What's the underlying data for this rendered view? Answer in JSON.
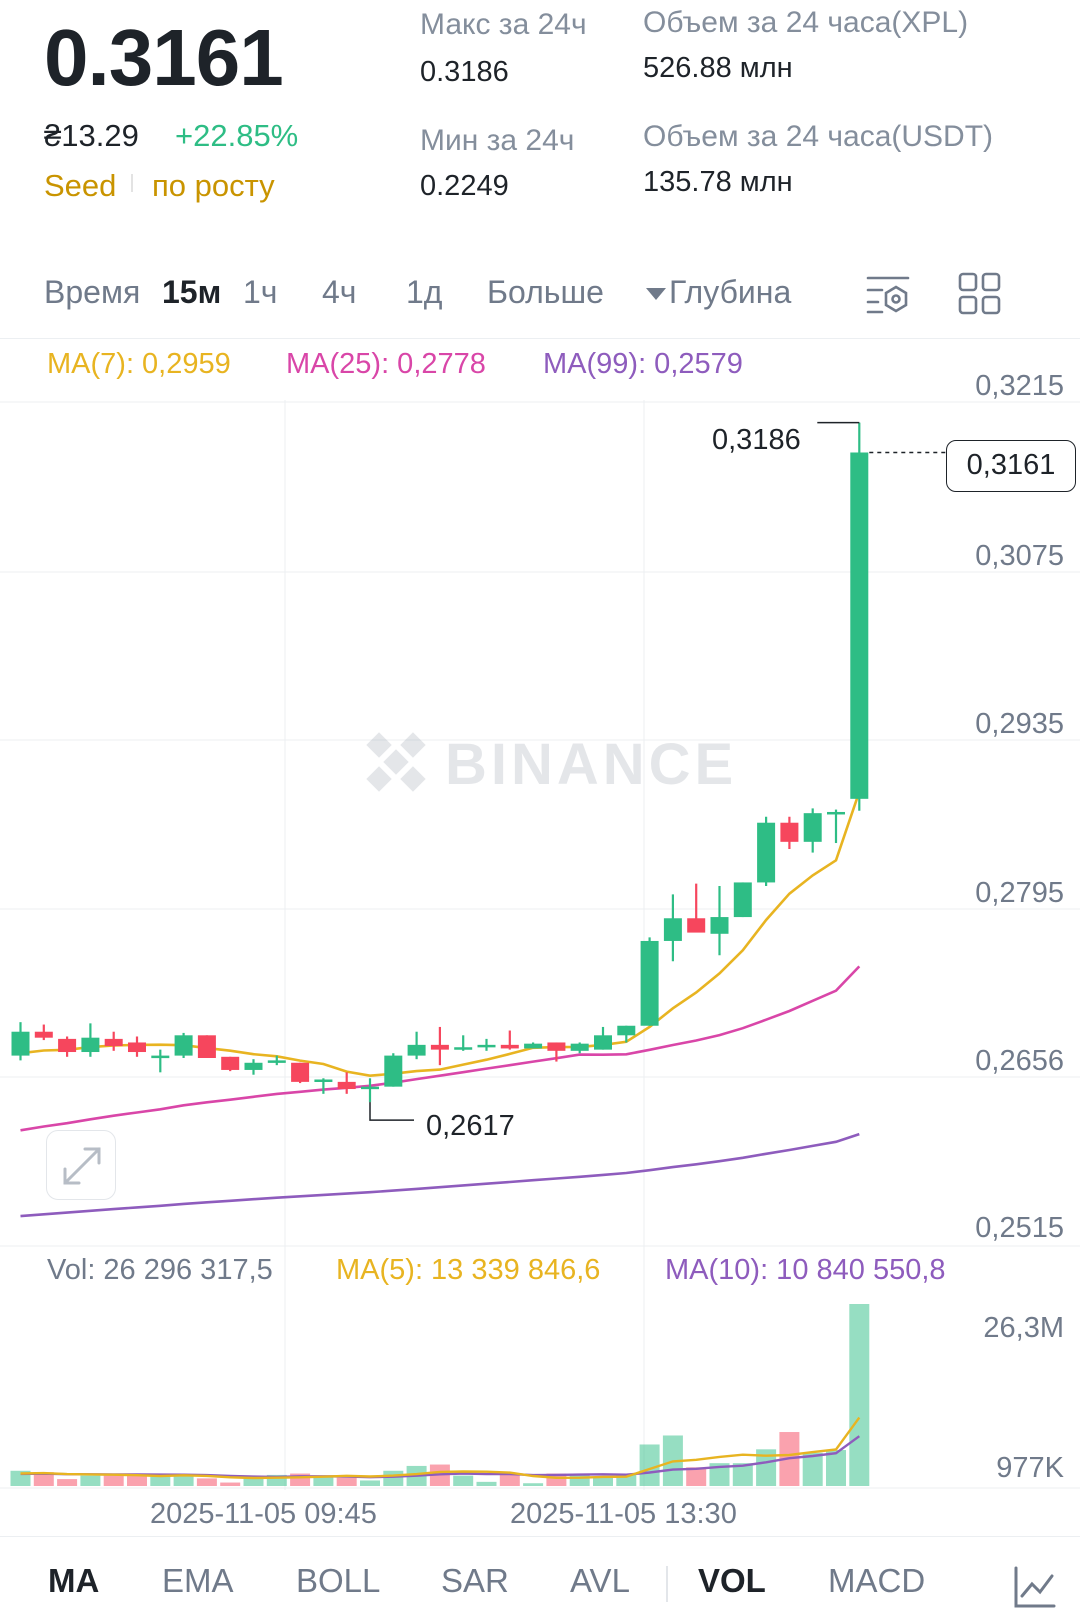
{
  "header": {
    "last_price": "0.3161",
    "fiat_price": "₴13.29",
    "change_pct": "+22.85%",
    "tag_seed": "Seed",
    "tag_trend": "по росту",
    "high_label": "Макс за 24ч",
    "high_value": "0.3186",
    "low_label": "Мин за 24ч",
    "low_value": "0.2249",
    "vol_base_label": "Объем за 24 часа(XPL)",
    "vol_base_value": "526.88 млн",
    "vol_quote_label": "Объем за 24 часа(USDT)",
    "vol_quote_value": "135.78 млн"
  },
  "timeframes": {
    "time_label": "Время",
    "tabs": [
      "15м",
      "1ч",
      "4ч",
      "1д"
    ],
    "active": "15м",
    "more_label": "Больше",
    "depth_label": "Глубина"
  },
  "ma_legend": {
    "ma7": "MA(7): 0,2959",
    "ma25": "MA(25): 0,2778",
    "ma99": "MA(99): 0,2579"
  },
  "price_axis": [
    "0,3215",
    "0,3075",
    "0,2935",
    "0,2795",
    "0,2656",
    "0,2515"
  ],
  "current_price_tag": "0,3161",
  "high_marker": "0,3186",
  "low_marker": "0,2617",
  "watermark": "BINANCE",
  "volume_legend": {
    "vol": "Vol: 26 296 317,5",
    "ma5": "MA(5): 13 339 846,6",
    "ma10": "MA(10): 10 840 550,8"
  },
  "volume_axis": [
    "26,3M",
    "977K"
  ],
  "dates": [
    "2025-11-05 09:45",
    "2025-11-05 13:30"
  ],
  "indicators": {
    "items": [
      "MA",
      "EMA",
      "BOLL",
      "SAR",
      "AVL",
      "VOL",
      "MACD"
    ],
    "active_main": "MA",
    "active_sub": "VOL"
  },
  "colors": {
    "up": "#2ebd85",
    "down": "#f6465d",
    "ma7": "#e8b421",
    "ma25": "#d946a8",
    "ma99": "#8e5cbd",
    "accent_gold": "#c99400"
  },
  "chart_data": {
    "type": "candlestick",
    "interval": "15m",
    "price_range": [
      0.2515,
      0.3215
    ],
    "candles": [
      {
        "o": 0.2656,
        "h": 0.2684,
        "l": 0.2652,
        "c": 0.2676
      },
      {
        "o": 0.2676,
        "h": 0.2682,
        "l": 0.2669,
        "c": 0.2671
      },
      {
        "o": 0.267,
        "h": 0.2672,
        "l": 0.2655,
        "c": 0.2659
      },
      {
        "o": 0.2659,
        "h": 0.2683,
        "l": 0.2655,
        "c": 0.2671
      },
      {
        "o": 0.267,
        "h": 0.2676,
        "l": 0.266,
        "c": 0.2664
      },
      {
        "o": 0.2667,
        "h": 0.2672,
        "l": 0.2655,
        "c": 0.2659
      },
      {
        "o": 0.2656,
        "h": 0.2661,
        "l": 0.2642,
        "c": 0.2656
      },
      {
        "o": 0.2656,
        "h": 0.2675,
        "l": 0.2654,
        "c": 0.2673
      },
      {
        "o": 0.2673,
        "h": 0.2673,
        "l": 0.2654,
        "c": 0.2654
      },
      {
        "o": 0.2655,
        "h": 0.2655,
        "l": 0.2643,
        "c": 0.2644
      },
      {
        "o": 0.2644,
        "h": 0.2653,
        "l": 0.264,
        "c": 0.265
      },
      {
        "o": 0.265,
        "h": 0.2656,
        "l": 0.2648,
        "c": 0.2652
      },
      {
        "o": 0.265,
        "h": 0.265,
        "l": 0.2633,
        "c": 0.2634
      },
      {
        "o": 0.2634,
        "h": 0.2637,
        "l": 0.2624,
        "c": 0.2636
      },
      {
        "o": 0.2634,
        "h": 0.2642,
        "l": 0.2624,
        "c": 0.2628
      },
      {
        "o": 0.2628,
        "h": 0.2637,
        "l": 0.2617,
        "c": 0.263
      },
      {
        "o": 0.263,
        "h": 0.2658,
        "l": 0.263,
        "c": 0.2656
      },
      {
        "o": 0.2656,
        "h": 0.2676,
        "l": 0.2653,
        "c": 0.2665
      },
      {
        "o": 0.2665,
        "h": 0.268,
        "l": 0.2648,
        "c": 0.2661
      },
      {
        "o": 0.2661,
        "h": 0.2673,
        "l": 0.266,
        "c": 0.2663
      },
      {
        "o": 0.2663,
        "h": 0.267,
        "l": 0.266,
        "c": 0.2665
      },
      {
        "o": 0.2665,
        "h": 0.2677,
        "l": 0.2661,
        "c": 0.2662
      },
      {
        "o": 0.2662,
        "h": 0.2667,
        "l": 0.2662,
        "c": 0.2666
      },
      {
        "o": 0.2667,
        "h": 0.2667,
        "l": 0.2651,
        "c": 0.266
      },
      {
        "o": 0.266,
        "h": 0.2667,
        "l": 0.2658,
        "c": 0.2666
      },
      {
        "o": 0.2661,
        "h": 0.268,
        "l": 0.2661,
        "c": 0.2673
      },
      {
        "o": 0.2673,
        "h": 0.2681,
        "l": 0.2667,
        "c": 0.2681
      },
      {
        "o": 0.2681,
        "h": 0.2755,
        "l": 0.2681,
        "c": 0.2752
      },
      {
        "o": 0.2752,
        "h": 0.2791,
        "l": 0.2735,
        "c": 0.2771
      },
      {
        "o": 0.2771,
        "h": 0.28,
        "l": 0.276,
        "c": 0.2759
      },
      {
        "o": 0.2758,
        "h": 0.2798,
        "l": 0.274,
        "c": 0.2772
      },
      {
        "o": 0.2772,
        "h": 0.2801,
        "l": 0.2772,
        "c": 0.2801
      },
      {
        "o": 0.2801,
        "h": 0.2856,
        "l": 0.2798,
        "c": 0.2851
      },
      {
        "o": 0.2851,
        "h": 0.2856,
        "l": 0.2829,
        "c": 0.2835
      },
      {
        "o": 0.2835,
        "h": 0.2863,
        "l": 0.2826,
        "c": 0.2859
      },
      {
        "o": 0.2859,
        "h": 0.2862,
        "l": 0.2834,
        "c": 0.286
      },
      {
        "o": 0.2871,
        "h": 0.3186,
        "l": 0.2861,
        "c": 0.3161
      }
    ],
    "volumes": [
      2.2,
      2.0,
      1.0,
      1.5,
      1.5,
      1.8,
      1.4,
      1.5,
      1.1,
      0.5,
      1.3,
      1.6,
      1.8,
      1.5,
      1.2,
      0.8,
      2.2,
      2.9,
      3.1,
      1.5,
      0.6,
      1.6,
      0.4,
      1.8,
      1.6,
      1.2,
      1.7,
      6.0,
      7.3,
      2.7,
      3.3,
      3.3,
      5.3,
      7.8,
      4.8,
      5.2,
      26.3
    ],
    "volume_max": 26.3
  }
}
